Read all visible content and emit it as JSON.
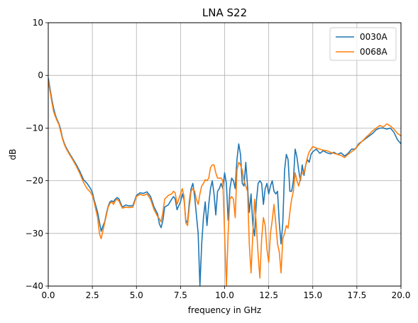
{
  "chart_data": {
    "type": "line",
    "title": "LNA S22",
    "xlabel": "frequency in GHz",
    "ylabel": "dB",
    "xlim": [
      0,
      20
    ],
    "ylim": [
      -40,
      10
    ],
    "xticks": [
      "0.0",
      "2.5",
      "5.0",
      "7.5",
      "10.0",
      "12.5",
      "15.0",
      "17.5",
      "20.0"
    ],
    "yticks": [
      "−40",
      "−30",
      "−20",
      "−10",
      "0",
      "10"
    ],
    "grid": true,
    "legend_position": "top-right",
    "series": [
      {
        "name": "0030A",
        "color": "#1f77b4",
        "points": [
          [
            0.0,
            -0.5
          ],
          [
            0.1,
            -2.5
          ],
          [
            0.2,
            -4.5
          ],
          [
            0.3,
            -6.2
          ],
          [
            0.4,
            -7.5
          ],
          [
            0.5,
            -8.4
          ],
          [
            0.6,
            -9.1
          ],
          [
            0.7,
            -10.2
          ],
          [
            0.8,
            -11.8
          ],
          [
            0.9,
            -12.8
          ],
          [
            1.0,
            -13.6
          ],
          [
            1.2,
            -14.8
          ],
          [
            1.4,
            -15.9
          ],
          [
            1.6,
            -17.0
          ],
          [
            1.8,
            -18.3
          ],
          [
            2.0,
            -19.8
          ],
          [
            2.2,
            -20.5
          ],
          [
            2.4,
            -21.5
          ],
          [
            2.5,
            -22.2
          ],
          [
            2.6,
            -23.6
          ],
          [
            2.7,
            -24.8
          ],
          [
            2.8,
            -26.0
          ],
          [
            2.9,
            -27.8
          ],
          [
            3.0,
            -29.6
          ],
          [
            3.1,
            -28.6
          ],
          [
            3.2,
            -27.8
          ],
          [
            3.3,
            -26.2
          ],
          [
            3.4,
            -24.8
          ],
          [
            3.5,
            -24.0
          ],
          [
            3.6,
            -23.8
          ],
          [
            3.7,
            -24.0
          ],
          [
            3.8,
            -23.5
          ],
          [
            3.9,
            -23.2
          ],
          [
            4.0,
            -23.4
          ],
          [
            4.2,
            -25.0
          ],
          [
            4.4,
            -24.6
          ],
          [
            4.6,
            -24.8
          ],
          [
            4.8,
            -24.7
          ],
          [
            5.0,
            -22.8
          ],
          [
            5.2,
            -22.3
          ],
          [
            5.4,
            -22.4
          ],
          [
            5.6,
            -22.1
          ],
          [
            5.8,
            -23.0
          ],
          [
            6.0,
            -25.0
          ],
          [
            6.2,
            -26.3
          ],
          [
            6.3,
            -28.2
          ],
          [
            6.4,
            -28.9
          ],
          [
            6.5,
            -27.5
          ],
          [
            6.6,
            -25.0
          ],
          [
            6.8,
            -24.6
          ],
          [
            7.0,
            -23.5
          ],
          [
            7.1,
            -23.0
          ],
          [
            7.2,
            -23.5
          ],
          [
            7.3,
            -25.5
          ],
          [
            7.5,
            -24.0
          ],
          [
            7.6,
            -22.5
          ],
          [
            7.7,
            -23.6
          ],
          [
            7.8,
            -27.5
          ],
          [
            7.9,
            -28.0
          ],
          [
            8.0,
            -24.0
          ],
          [
            8.1,
            -21.5
          ],
          [
            8.2,
            -20.5
          ],
          [
            8.3,
            -23.0
          ],
          [
            8.4,
            -26.5
          ],
          [
            8.5,
            -30.0
          ],
          [
            8.6,
            -40.0
          ],
          [
            8.7,
            -32.0
          ],
          [
            8.8,
            -27.0
          ],
          [
            8.9,
            -24.0
          ],
          [
            9.0,
            -28.5
          ],
          [
            9.1,
            -24.5
          ],
          [
            9.2,
            -21.5
          ],
          [
            9.3,
            -20.0
          ],
          [
            9.4,
            -22.5
          ],
          [
            9.5,
            -26.5
          ],
          [
            9.6,
            -22.0
          ],
          [
            9.7,
            -21.5
          ],
          [
            9.8,
            -20.5
          ],
          [
            9.9,
            -21.5
          ],
          [
            10.0,
            -18.5
          ],
          [
            10.1,
            -20.5
          ],
          [
            10.2,
            -27.5
          ],
          [
            10.3,
            -21.5
          ],
          [
            10.4,
            -19.5
          ],
          [
            10.5,
            -20.0
          ],
          [
            10.6,
            -21.5
          ],
          [
            10.7,
            -16.0
          ],
          [
            10.8,
            -13.0
          ],
          [
            10.9,
            -15.0
          ],
          [
            11.0,
            -20.5
          ],
          [
            11.1,
            -21.0
          ],
          [
            11.2,
            -16.5
          ],
          [
            11.3,
            -21.0
          ],
          [
            11.4,
            -26.0
          ],
          [
            11.5,
            -22.5
          ],
          [
            11.6,
            -28.5
          ],
          [
            11.7,
            -30.5
          ],
          [
            11.8,
            -24.0
          ],
          [
            11.9,
            -20.5
          ],
          [
            12.0,
            -20.0
          ],
          [
            12.1,
            -20.5
          ],
          [
            12.2,
            -24.5
          ],
          [
            12.3,
            -21.5
          ],
          [
            12.4,
            -20.5
          ],
          [
            12.5,
            -22.5
          ],
          [
            12.6,
            -21.0
          ],
          [
            12.7,
            -20.0
          ],
          [
            12.8,
            -22.0
          ],
          [
            12.9,
            -22.5
          ],
          [
            13.0,
            -22.0
          ],
          [
            13.1,
            -28.0
          ],
          [
            13.2,
            -32.0
          ],
          [
            13.3,
            -28.0
          ],
          [
            13.4,
            -18.0
          ],
          [
            13.5,
            -15.0
          ],
          [
            13.6,
            -16.0
          ],
          [
            13.7,
            -22.0
          ],
          [
            13.8,
            -22.0
          ],
          [
            13.9,
            -20.0
          ],
          [
            14.0,
            -14.0
          ],
          [
            14.1,
            -15.5
          ],
          [
            14.2,
            -18.0
          ],
          [
            14.3,
            -20.0
          ],
          [
            14.4,
            -17.0
          ],
          [
            14.5,
            -19.0
          ],
          [
            14.6,
            -17.0
          ],
          [
            14.7,
            -16.0
          ],
          [
            14.8,
            -16.5
          ],
          [
            14.9,
            -15.0
          ],
          [
            15.0,
            -14.5
          ],
          [
            15.2,
            -14.0
          ],
          [
            15.4,
            -14.8
          ],
          [
            15.6,
            -14.3
          ],
          [
            15.8,
            -14.7
          ],
          [
            16.0,
            -14.9
          ],
          [
            16.2,
            -14.6
          ],
          [
            16.4,
            -15.0
          ],
          [
            16.6,
            -14.7
          ],
          [
            16.8,
            -15.3
          ],
          [
            17.0,
            -14.8
          ],
          [
            17.2,
            -14.0
          ],
          [
            17.4,
            -14.0
          ],
          [
            17.6,
            -13.0
          ],
          [
            17.8,
            -12.5
          ],
          [
            18.0,
            -12.0
          ],
          [
            18.2,
            -11.5
          ],
          [
            18.4,
            -11.0
          ],
          [
            18.6,
            -10.3
          ],
          [
            18.8,
            -10.0
          ],
          [
            19.0,
            -10.0
          ],
          [
            19.2,
            -10.2
          ],
          [
            19.4,
            -10.0
          ],
          [
            19.6,
            -10.8
          ],
          [
            19.8,
            -12.2
          ],
          [
            20.0,
            -13.0
          ]
        ]
      },
      {
        "name": "0068A",
        "color": "#ff7f0e",
        "points": [
          [
            0.0,
            -1.0
          ],
          [
            0.1,
            -3.0
          ],
          [
            0.2,
            -5.0
          ],
          [
            0.3,
            -6.8
          ],
          [
            0.4,
            -7.8
          ],
          [
            0.5,
            -8.6
          ],
          [
            0.6,
            -9.3
          ],
          [
            0.7,
            -10.6
          ],
          [
            0.8,
            -12.0
          ],
          [
            0.9,
            -13.0
          ],
          [
            1.0,
            -13.8
          ],
          [
            1.2,
            -15.0
          ],
          [
            1.4,
            -16.1
          ],
          [
            1.6,
            -17.3
          ],
          [
            1.8,
            -18.7
          ],
          [
            2.0,
            -20.3
          ],
          [
            2.2,
            -21.5
          ],
          [
            2.4,
            -22.2
          ],
          [
            2.5,
            -22.8
          ],
          [
            2.6,
            -24.0
          ],
          [
            2.7,
            -25.5
          ],
          [
            2.8,
            -27.0
          ],
          [
            2.9,
            -30.0
          ],
          [
            3.0,
            -31.0
          ],
          [
            3.1,
            -29.5
          ],
          [
            3.2,
            -28.0
          ],
          [
            3.3,
            -26.5
          ],
          [
            3.4,
            -25.0
          ],
          [
            3.5,
            -24.3
          ],
          [
            3.6,
            -24.0
          ],
          [
            3.7,
            -24.5
          ],
          [
            3.8,
            -23.8
          ],
          [
            3.9,
            -23.5
          ],
          [
            4.0,
            -23.8
          ],
          [
            4.2,
            -25.2
          ],
          [
            4.4,
            -25.0
          ],
          [
            4.6,
            -25.1
          ],
          [
            4.8,
            -25.0
          ],
          [
            5.0,
            -23.0
          ],
          [
            5.2,
            -22.6
          ],
          [
            5.4,
            -22.8
          ],
          [
            5.6,
            -22.5
          ],
          [
            5.8,
            -23.5
          ],
          [
            6.0,
            -25.5
          ],
          [
            6.2,
            -26.8
          ],
          [
            6.3,
            -27.2
          ],
          [
            6.4,
            -27.8
          ],
          [
            6.5,
            -26.0
          ],
          [
            6.6,
            -23.5
          ],
          [
            6.8,
            -22.8
          ],
          [
            7.0,
            -22.5
          ],
          [
            7.1,
            -22.0
          ],
          [
            7.2,
            -22.3
          ],
          [
            7.3,
            -24.5
          ],
          [
            7.5,
            -22.5
          ],
          [
            7.6,
            -21.5
          ],
          [
            7.7,
            -23.0
          ],
          [
            7.8,
            -28.0
          ],
          [
            7.9,
            -28.5
          ],
          [
            8.0,
            -25.0
          ],
          [
            8.1,
            -22.0
          ],
          [
            8.2,
            -21.5
          ],
          [
            8.3,
            -22.0
          ],
          [
            8.4,
            -23.5
          ],
          [
            8.5,
            -24.5
          ],
          [
            8.6,
            -22.5
          ],
          [
            8.7,
            -21.0
          ],
          [
            8.8,
            -20.5
          ],
          [
            8.9,
            -19.8
          ],
          [
            9.0,
            -20.0
          ],
          [
            9.1,
            -19.5
          ],
          [
            9.2,
            -17.5
          ],
          [
            9.3,
            -17.0
          ],
          [
            9.4,
            -17.0
          ],
          [
            9.5,
            -18.5
          ],
          [
            9.6,
            -19.5
          ],
          [
            9.7,
            -19.5
          ],
          [
            9.8,
            -19.5
          ],
          [
            9.9,
            -20.0
          ],
          [
            10.0,
            -30.0
          ],
          [
            10.1,
            -40.0
          ],
          [
            10.2,
            -30.0
          ],
          [
            10.3,
            -23.5
          ],
          [
            10.4,
            -23.0
          ],
          [
            10.5,
            -23.5
          ],
          [
            10.6,
            -27.0
          ],
          [
            10.7,
            -18.0
          ],
          [
            10.8,
            -16.5
          ],
          [
            10.9,
            -17.0
          ],
          [
            11.0,
            -18.0
          ],
          [
            11.1,
            -20.0
          ],
          [
            11.2,
            -21.0
          ],
          [
            11.3,
            -22.0
          ],
          [
            11.4,
            -32.0
          ],
          [
            11.5,
            -37.5
          ],
          [
            11.6,
            -30.0
          ],
          [
            11.7,
            -23.5
          ],
          [
            11.8,
            -28.5
          ],
          [
            11.9,
            -34.0
          ],
          [
            12.0,
            -38.5
          ],
          [
            12.1,
            -31.0
          ],
          [
            12.2,
            -27.0
          ],
          [
            12.3,
            -28.5
          ],
          [
            12.4,
            -33.0
          ],
          [
            12.5,
            -35.5
          ],
          [
            12.6,
            -30.0
          ],
          [
            12.7,
            -27.5
          ],
          [
            12.8,
            -24.5
          ],
          [
            12.9,
            -28.0
          ],
          [
            13.0,
            -32.0
          ],
          [
            13.1,
            -33.5
          ],
          [
            13.2,
            -37.5
          ],
          [
            13.3,
            -31.0
          ],
          [
            13.4,
            -30.0
          ],
          [
            13.5,
            -28.5
          ],
          [
            13.6,
            -29.0
          ],
          [
            13.7,
            -26.0
          ],
          [
            13.8,
            -23.5
          ],
          [
            13.9,
            -22.0
          ],
          [
            14.0,
            -18.5
          ],
          [
            14.1,
            -20.0
          ],
          [
            14.2,
            -21.0
          ],
          [
            14.3,
            -19.5
          ],
          [
            14.4,
            -18.5
          ],
          [
            14.5,
            -18.5
          ],
          [
            14.6,
            -17.0
          ],
          [
            14.7,
            -15.5
          ],
          [
            14.8,
            -14.5
          ],
          [
            14.9,
            -14.0
          ],
          [
            15.0,
            -13.5
          ],
          [
            15.2,
            -13.8
          ],
          [
            15.4,
            -14.0
          ],
          [
            15.6,
            -14.2
          ],
          [
            15.8,
            -14.3
          ],
          [
            16.0,
            -14.6
          ],
          [
            16.2,
            -14.8
          ],
          [
            16.4,
            -15.0
          ],
          [
            16.6,
            -15.2
          ],
          [
            16.8,
            -15.6
          ],
          [
            17.0,
            -15.0
          ],
          [
            17.2,
            -14.5
          ],
          [
            17.4,
            -14.0
          ],
          [
            17.6,
            -13.2
          ],
          [
            17.8,
            -12.5
          ],
          [
            18.0,
            -11.8
          ],
          [
            18.2,
            -11.2
          ],
          [
            18.4,
            -10.5
          ],
          [
            18.6,
            -10.0
          ],
          [
            18.8,
            -9.5
          ],
          [
            19.0,
            -9.8
          ],
          [
            19.2,
            -9.2
          ],
          [
            19.4,
            -9.6
          ],
          [
            19.6,
            -10.2
          ],
          [
            19.8,
            -11.0
          ],
          [
            20.0,
            -11.5
          ]
        ]
      }
    ]
  }
}
